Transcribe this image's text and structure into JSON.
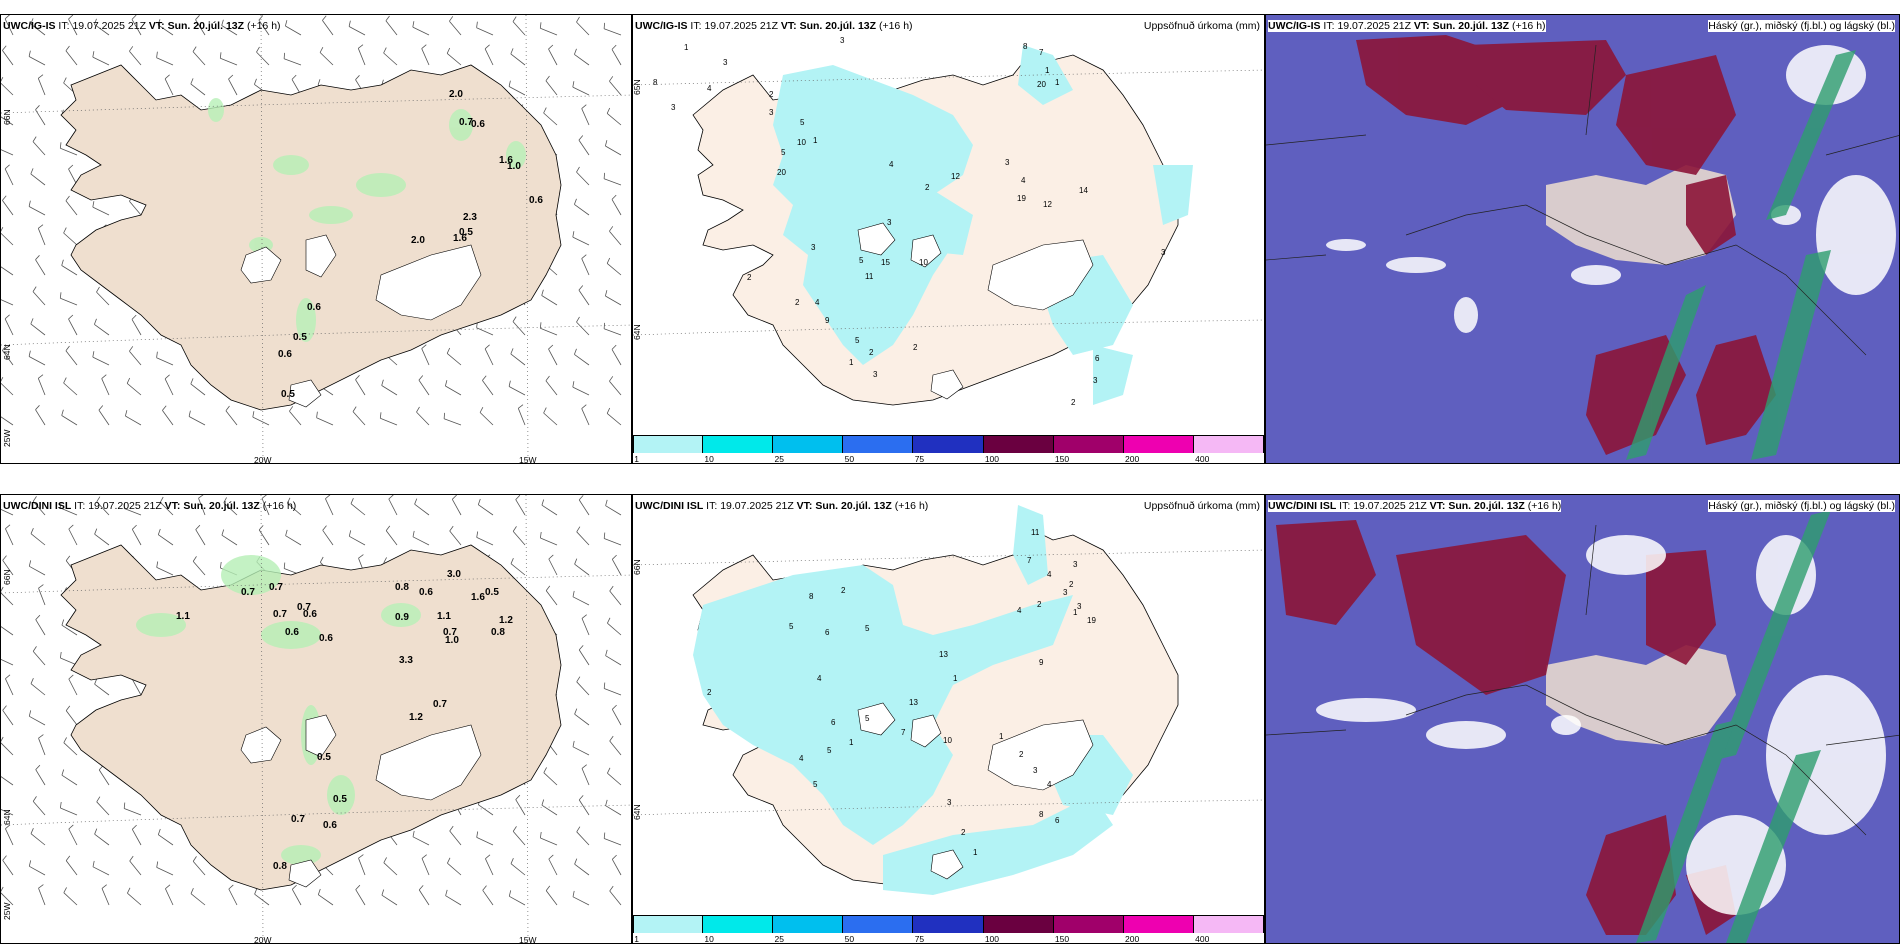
{
  "colors": {
    "land": "#efdfcf",
    "precip_light": "#b3f3f5",
    "cloud_bg": "#5f5fbf",
    "cloud_high": "#8c1538",
    "cloud_mid": "#ffffff",
    "cloud_low": "#2e9e6e"
  },
  "rows": [
    {
      "wind": {
        "model": "UWC/IG-IS",
        "it_label": "IT:",
        "it_value": "19.07.2025 21Z",
        "vt_label": "VT:",
        "vt_value": "Sun. 20.júl. 13Z",
        "lead": "(+16 h)",
        "lon_labels": [
          "20W",
          "15W"
        ],
        "lat_labels": [
          "66N",
          "64N",
          "25W"
        ],
        "values": [
          "2.0",
          "0.7",
          "0.6",
          "1.6",
          "1.0",
          "0.6",
          "2.3",
          "2.0",
          "1.6",
          "0.5",
          "0.6",
          "0.5",
          "0.6",
          "0.5"
        ]
      },
      "precip": {
        "model": "UWC/IG-IS",
        "it_label": "IT:",
        "it_value": "19.07.2025 21Z",
        "vt_label": "VT:",
        "vt_value": "Sun. 20.júl. 13Z",
        "lead": "(+16 h)",
        "right_title": "Uppsöfnuð úrkoma (mm)",
        "lat_labels": [
          "65N",
          "64N"
        ],
        "values": [
          "3",
          "1",
          "8",
          "7",
          "1",
          "1",
          "3",
          "20",
          "8",
          "4",
          "3",
          "2",
          "3",
          "5",
          "1",
          "10",
          "5",
          "4",
          "3",
          "20",
          "12",
          "4",
          "2",
          "19",
          "12",
          "14",
          "3",
          "5",
          "15",
          "10",
          "11",
          "3",
          "2",
          "2",
          "4",
          "9",
          "5",
          "2",
          "1",
          "3",
          "2",
          "3",
          "6",
          "3",
          "2"
        ]
      },
      "cloud": {
        "model": "UWC/IG-IS",
        "it_label": "IT:",
        "it_value": "19.07.2025 21Z",
        "vt_label": "VT:",
        "vt_value": "Sun. 20.júl. 13Z",
        "lead": "(+16 h)",
        "right_title": "Háský (gr.), miðský (fj.bl.) og lágský (bl.)"
      }
    },
    {
      "wind": {
        "model": "UWC/DINI ISL",
        "it_label": "IT:",
        "it_value": "19.07.2025 21Z",
        "vt_label": "VT:",
        "vt_value": "Sun. 20.júl. 13Z",
        "lead": "(+16 h)",
        "lon_labels": [
          "20W",
          "15W"
        ],
        "lat_labels": [
          "66N",
          "64N",
          "25W"
        ],
        "values": [
          "3.0",
          "0.8",
          "0.6",
          "0.5",
          "1.6",
          "0.7",
          "0.7",
          "0.7",
          "0.7",
          "0.6",
          "1.1",
          "0.9",
          "1.1",
          "0.6",
          "0.6",
          "1.2",
          "0.8",
          "0.7",
          "1.0",
          "3.3",
          "0.7",
          "1.2",
          "0.5",
          "0.5",
          "0.7",
          "0.6",
          "0.8"
        ]
      },
      "precip": {
        "model": "UWC/DINI ISL",
        "it_label": "IT:",
        "it_value": "19.07.2025 21Z",
        "vt_label": "VT:",
        "vt_value": "Sun. 20.júl. 13Z",
        "lead": "(+16 h)",
        "right_title": "Uppsöfnuð úrkoma (mm)",
        "lat_labels": [
          "66N",
          "64N"
        ],
        "values": [
          "11",
          "7",
          "4",
          "3",
          "2",
          "3",
          "1",
          "2",
          "8",
          "3",
          "2",
          "19",
          "4",
          "5",
          "6",
          "5",
          "9",
          "13",
          "1",
          "4",
          "13",
          "5",
          "6",
          "2",
          "1",
          "7",
          "5",
          "4",
          "10",
          "5",
          "1",
          "2",
          "3",
          "4",
          "8",
          "6",
          "3",
          "2",
          "1"
        ]
      },
      "cloud": {
        "model": "UWC/DINI ISL",
        "it_label": "IT:",
        "it_value": "19.07.2025 21Z",
        "vt_label": "VT:",
        "vt_value": "Sun. 20.júl. 13Z",
        "lead": "(+16 h)",
        "right_title": "Háský (gr.), miðský (fj.bl.) og lágský (bl.)"
      }
    }
  ],
  "colorbar": {
    "labels": [
      "1",
      "10",
      "25",
      "50",
      "75",
      "100",
      "150",
      "200",
      "400"
    ],
    "colors": [
      "#b3f3f5",
      "#00e9ea",
      "#00bfee",
      "#2b6ef0",
      "#2030c0",
      "#6a0040",
      "#a0006a",
      "#ee00b0",
      "#f5b8f5"
    ]
  }
}
